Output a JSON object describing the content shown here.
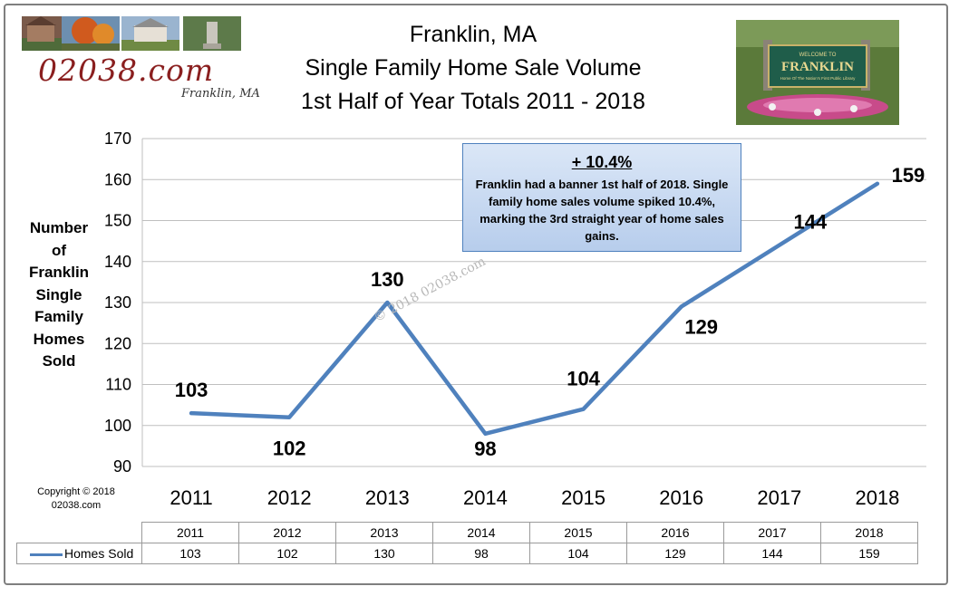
{
  "header": {
    "title_lines": [
      "Franklin, MA",
      "Single Family Home Sale Volume",
      "1st Half of Year Totals 2011 - 2018"
    ],
    "logo_text": "02038.com",
    "logo_subtext": "Franklin, MA",
    "sign_text": "FRANKLIN",
    "sign_top_text": "WELCOME TO",
    "sign_sub_text": "Home Of The Nation's First Public Library"
  },
  "chart_data": {
    "type": "line",
    "title": "Franklin, MA Single Family Home Sale Volume 1st Half of Year Totals 2011 - 2018",
    "categories": [
      "2011",
      "2012",
      "2013",
      "2014",
      "2015",
      "2016",
      "2017",
      "2018"
    ],
    "series": [
      {
        "name": "Homes Sold",
        "values": [
          103,
          102,
          130,
          98,
          104,
          129,
          144,
          159
        ],
        "color": "#4f81bd"
      }
    ],
    "ylabel": "Number of Franklin Single Family Homes Sold",
    "ylabel_lines": [
      "Number",
      "of",
      "Franklin",
      "Single",
      "Family",
      "Homes",
      "Sold"
    ],
    "ylim": [
      90,
      170
    ],
    "yticks": [
      90,
      100,
      110,
      120,
      130,
      140,
      150,
      160,
      170
    ],
    "grid": true,
    "legend_placement": "data-table"
  },
  "annotation": {
    "headline": "+ 10.4%",
    "body": "Franklin had a banner 1st half of 2018. Single family home sales volume spiked 10.4%, marking the 3rd straight year of home sales gains."
  },
  "copyright": {
    "line1": "Copyright © 2018",
    "line2": "02038.com"
  },
  "watermark": "© 2018 02038.com"
}
